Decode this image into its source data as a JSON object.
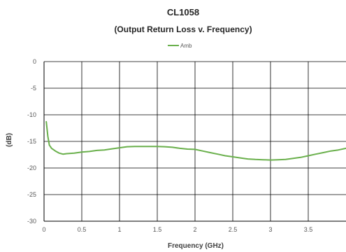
{
  "chart_data": {
    "type": "line",
    "title": "CL1058",
    "subtitle": "(Output Return Loss v. Frequency)",
    "xlabel": "Frequency (GHz)",
    "ylabel": "(dB)",
    "xlim": [
      0,
      4
    ],
    "ylim": [
      -30,
      0
    ],
    "x_ticks": [
      "0",
      "0.5",
      "1",
      "1.5",
      "2",
      "2.5",
      "3",
      "3.5"
    ],
    "y_ticks": [
      "0",
      "-5",
      "-10",
      "-15",
      "-20",
      "-25",
      "-30"
    ],
    "grid": true,
    "legend_position": "top-center",
    "series": [
      {
        "name": "Amb",
        "color": "#6ab04c",
        "x": [
          0.03,
          0.05,
          0.07,
          0.1,
          0.15,
          0.2,
          0.25,
          0.3,
          0.4,
          0.5,
          0.6,
          0.7,
          0.8,
          0.9,
          1.0,
          1.1,
          1.2,
          1.3,
          1.4,
          1.5,
          1.6,
          1.7,
          1.8,
          1.9,
          2.0,
          2.1,
          2.2,
          2.3,
          2.4,
          2.5,
          2.6,
          2.7,
          2.8,
          2.9,
          3.0,
          3.1,
          3.2,
          3.3,
          3.4,
          3.5,
          3.6,
          3.7,
          3.8,
          3.9,
          4.0
        ],
        "values": [
          -11.3,
          -14.0,
          -15.7,
          -16.3,
          -16.8,
          -17.2,
          -17.4,
          -17.3,
          -17.2,
          -17.0,
          -16.9,
          -16.7,
          -16.6,
          -16.4,
          -16.2,
          -16.0,
          -15.95,
          -15.95,
          -15.95,
          -15.95,
          -16.0,
          -16.1,
          -16.3,
          -16.45,
          -16.5,
          -16.8,
          -17.1,
          -17.4,
          -17.7,
          -17.9,
          -18.1,
          -18.3,
          -18.4,
          -18.45,
          -18.5,
          -18.45,
          -18.4,
          -18.2,
          -18.0,
          -17.7,
          -17.4,
          -17.1,
          -16.8,
          -16.6,
          -16.3
        ]
      }
    ]
  }
}
